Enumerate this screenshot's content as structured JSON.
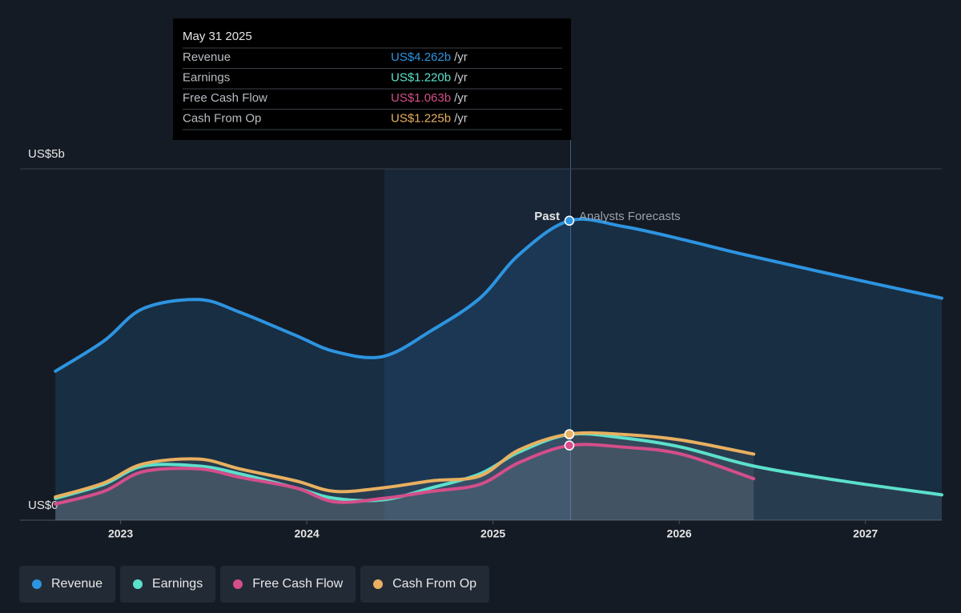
{
  "chart_data": {
    "type": "line",
    "annotations": {
      "past": "Past",
      "forecast": "Analysts Forecasts"
    },
    "xlim": [
      2022.46,
      2027.41
    ],
    "xticks": [
      2023,
      2024,
      2025,
      2026,
      2027
    ],
    "ylim": [
      0,
      5
    ],
    "yticks": [
      {
        "value": 0,
        "label": "US$0"
      },
      {
        "value": 5,
        "label": "US$5b"
      }
    ],
    "grid": true,
    "series": [
      {
        "name": "Revenue",
        "color": "#2d94e0",
        "x": [
          2022.65,
          2022.91,
          2023.12,
          2023.42,
          2023.64,
          2023.94,
          2024.15,
          2024.41,
          2024.67,
          2024.93,
          2025.14,
          2025.41,
          2025.7,
          2026.01,
          2026.35,
          2026.87,
          2027.41
        ],
        "values": [
          2.12,
          2.55,
          3.01,
          3.14,
          2.96,
          2.63,
          2.4,
          2.33,
          2.7,
          3.16,
          3.78,
          4.262,
          4.18,
          4.0,
          3.78,
          3.47,
          3.16
        ]
      },
      {
        "name": "Earnings",
        "color": "#5ce0cb",
        "x": [
          2022.65,
          2022.91,
          2023.12,
          2023.42,
          2023.64,
          2023.94,
          2024.15,
          2024.41,
          2024.67,
          2024.93,
          2025.14,
          2025.41,
          2025.7,
          2026.01,
          2026.4,
          2026.87,
          2027.41
        ],
        "values": [
          0.31,
          0.51,
          0.77,
          0.77,
          0.66,
          0.46,
          0.31,
          0.29,
          0.46,
          0.66,
          0.97,
          1.22,
          1.17,
          1.04,
          0.77,
          0.56,
          0.36
        ]
      },
      {
        "name": "Free Cash Flow",
        "color": "#d44e8a",
        "x": [
          2022.65,
          2022.91,
          2023.12,
          2023.42,
          2023.64,
          2023.94,
          2024.15,
          2024.41,
          2024.67,
          2024.93,
          2025.14,
          2025.41,
          2025.7,
          2026.01,
          2026.4
        ],
        "values": [
          0.23,
          0.41,
          0.69,
          0.73,
          0.61,
          0.46,
          0.26,
          0.31,
          0.41,
          0.51,
          0.82,
          1.063,
          1.04,
          0.94,
          0.59
        ]
      },
      {
        "name": "Cash From Op",
        "color": "#e8b060",
        "x": [
          2022.65,
          2022.91,
          2023.12,
          2023.42,
          2023.64,
          2023.94,
          2024.15,
          2024.41,
          2024.67,
          2024.93,
          2025.14,
          2025.41,
          2025.7,
          2026.01,
          2026.4
        ],
        "values": [
          0.33,
          0.53,
          0.8,
          0.87,
          0.73,
          0.56,
          0.41,
          0.46,
          0.56,
          0.63,
          1.0,
          1.225,
          1.22,
          1.14,
          0.94
        ]
      }
    ],
    "tooltip": {
      "title": "May 31 2025",
      "point_index": 11,
      "value_labels": [
        "US$4.262b",
        "US$1.220b",
        "US$1.063b",
        "US$1.225b"
      ],
      "unit": "/yr"
    }
  }
}
